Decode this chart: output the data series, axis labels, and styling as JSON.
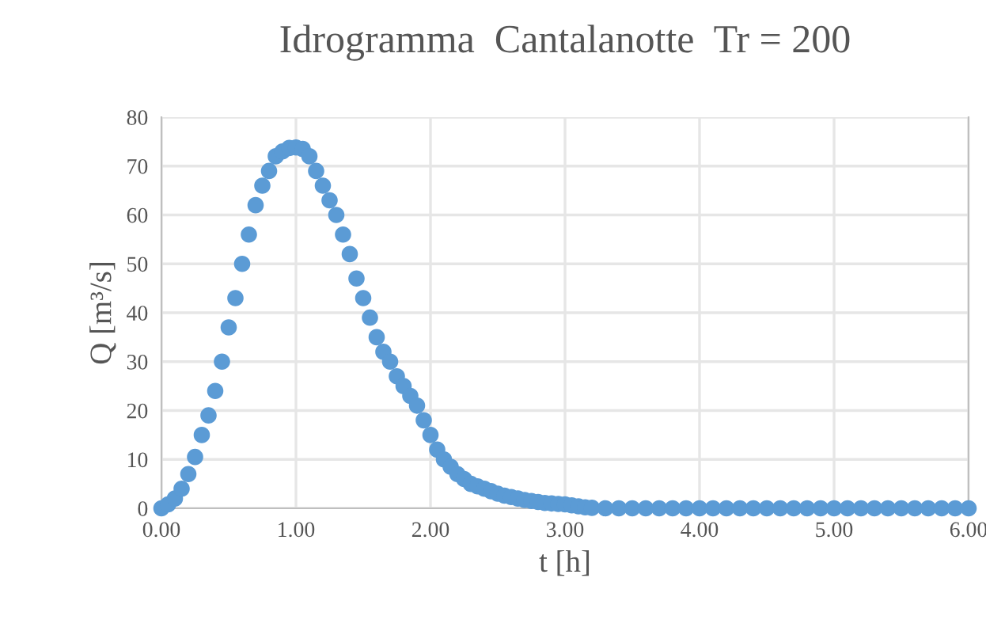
{
  "chart_data": {
    "type": "scatter",
    "title": "Idrogramma  Cantalanotte  Tr = 200",
    "xlabel": "t [h]",
    "ylabel": "Q [m³/s]",
    "x": [
      0,
      0.05,
      0.1,
      0.15,
      0.2,
      0.25,
      0.3,
      0.35,
      0.4,
      0.45,
      0.5,
      0.55,
      0.6,
      0.65,
      0.7,
      0.75,
      0.8,
      0.85,
      0.9,
      0.95,
      1.0,
      1.05,
      1.1,
      1.15,
      1.2,
      1.25,
      1.3,
      1.35,
      1.4,
      1.45,
      1.5,
      1.55,
      1.6,
      1.65,
      1.7,
      1.75,
      1.8,
      1.85,
      1.9,
      1.95,
      2.0,
      2.05,
      2.1,
      2.15,
      2.2,
      2.25,
      2.3,
      2.35,
      2.4,
      2.45,
      2.5,
      2.55,
      2.6,
      2.65,
      2.7,
      2.75,
      2.8,
      2.85,
      2.9,
      2.95,
      3.0,
      3.05,
      3.1,
      3.15,
      3.2,
      3.3,
      3.4,
      3.5,
      3.6,
      3.7,
      3.8,
      3.9,
      4.0,
      4.1,
      4.2,
      4.3,
      4.4,
      4.5,
      4.6,
      4.7,
      4.8,
      4.9,
      5.0,
      5.1,
      5.2,
      5.3,
      5.4,
      5.5,
      5.6,
      5.7,
      5.8,
      5.9,
      6.0
    ],
    "series": [
      {
        "color": "#5b9bd5",
        "values": [
          0,
          0.8,
          2,
          4,
          7,
          10.5,
          15,
          19,
          24,
          30,
          37,
          43,
          50,
          56,
          62,
          66,
          69,
          72,
          73,
          73.7,
          73.8,
          73.5,
          72,
          69,
          66,
          63,
          60,
          56,
          52,
          47,
          43,
          39,
          35,
          32,
          30,
          27,
          25,
          23,
          21,
          18,
          15,
          12,
          10,
          8.5,
          7,
          6,
          5,
          4.5,
          4,
          3.5,
          3,
          2.6,
          2.3,
          2,
          1.7,
          1.5,
          1.3,
          1.1,
          1,
          0.9,
          0.8,
          0.6,
          0.4,
          0.2,
          0.1,
          0,
          0,
          0,
          0,
          0,
          0,
          0,
          0,
          0,
          0,
          0,
          0,
          0,
          0,
          0,
          0,
          0,
          0,
          0,
          0,
          0,
          0,
          0,
          0,
          0,
          0,
          0,
          0
        ]
      }
    ],
    "xlim": [
      0,
      6
    ],
    "xticks": [
      {
        "value": 0,
        "label": "0.00"
      },
      {
        "value": 1,
        "label": "1.00"
      },
      {
        "value": 2,
        "label": "2.00"
      },
      {
        "value": 3,
        "label": "3.00"
      },
      {
        "value": 4,
        "label": "4.00"
      },
      {
        "value": 5,
        "label": "5.00"
      },
      {
        "value": 6,
        "label": "6.00"
      }
    ],
    "ylim": [
      0,
      80
    ],
    "yticks": [
      0,
      10,
      20,
      30,
      40,
      50,
      60,
      70,
      80
    ],
    "grid": true,
    "marker": "circle"
  }
}
